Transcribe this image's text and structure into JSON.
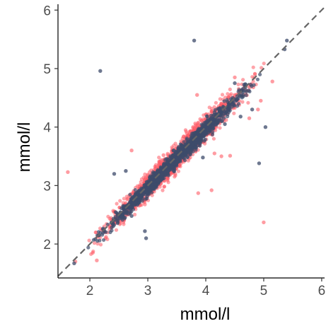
{
  "chart_data": {
    "type": "scatter",
    "title": "",
    "xlabel": "mmol/l",
    "ylabel": "mmol/l",
    "xlim": [
      1.45,
      6.05
    ],
    "ylim": [
      1.42,
      6.1
    ],
    "x_ticks": [
      "2",
      "3",
      "4",
      "5",
      "6"
    ],
    "y_ticks": [
      "2",
      "3",
      "4",
      "5",
      "6"
    ],
    "grid": false,
    "legend": "none",
    "reference_line": {
      "style": "dashed",
      "slope": 1,
      "intercept": 0,
      "color": "#666666"
    },
    "series": [
      {
        "color": "#ff5a64",
        "dense_band": {
          "x_range": [
            1.6,
            5.35
          ],
          "slope": 1.0,
          "intercept": -0.02,
          "spread": 0.14,
          "count": 1400
        },
        "points": [
          [
            1.62,
            3.23
          ],
          [
            4.42,
            3.51
          ],
          [
            5.0,
            2.37
          ],
          [
            3.87,
            2.87
          ],
          [
            4.1,
            2.92
          ],
          [
            3.42,
            3.22
          ],
          [
            4.55,
            4.55
          ],
          [
            4.5,
            4.85
          ],
          [
            3.85,
            4.55
          ],
          [
            4.35,
            4.12
          ],
          [
            3.7,
            3.6
          ],
          [
            4.15,
            3.55
          ],
          [
            4.27,
            3.5
          ],
          [
            2.72,
            3.6
          ],
          [
            3.27,
            3.52
          ],
          [
            4.82,
            4.68
          ],
          [
            4.95,
            4.45
          ],
          [
            5.15,
            4.78
          ],
          [
            2.28,
            2.12
          ],
          [
            4.75,
            4.15
          ],
          [
            4.9,
            4.3
          ],
          [
            1.75,
            1.7
          ],
          [
            2.05,
            1.85
          ],
          [
            2.12,
            1.72
          ]
        ]
      },
      {
        "color": "#3d4b6b",
        "dense_band": {
          "x_range": [
            1.75,
            5.2
          ],
          "slope": 1.0,
          "intercept": -0.03,
          "spread": 0.09,
          "count": 1400
        },
        "points": [
          [
            2.18,
            4.96
          ],
          [
            3.8,
            5.48
          ],
          [
            4.62,
            4.62
          ],
          [
            5.03,
            4.0
          ],
          [
            4.92,
            3.38
          ],
          [
            3.83,
            3.72
          ],
          [
            2.42,
            3.2
          ],
          [
            2.62,
            3.25
          ],
          [
            2.97,
            2.1
          ],
          [
            2.95,
            2.22
          ],
          [
            1.73,
            1.67
          ],
          [
            5.4,
            5.48
          ],
          [
            5.36,
            5.33
          ],
          [
            4.5,
            4.75
          ],
          [
            4.6,
            4.18
          ],
          [
            4.33,
            4.05
          ],
          [
            2.72,
            2.48
          ],
          [
            3.45,
            3.25
          ],
          [
            4.8,
            4.3
          ],
          [
            3.95,
            3.48
          ]
        ]
      }
    ]
  }
}
